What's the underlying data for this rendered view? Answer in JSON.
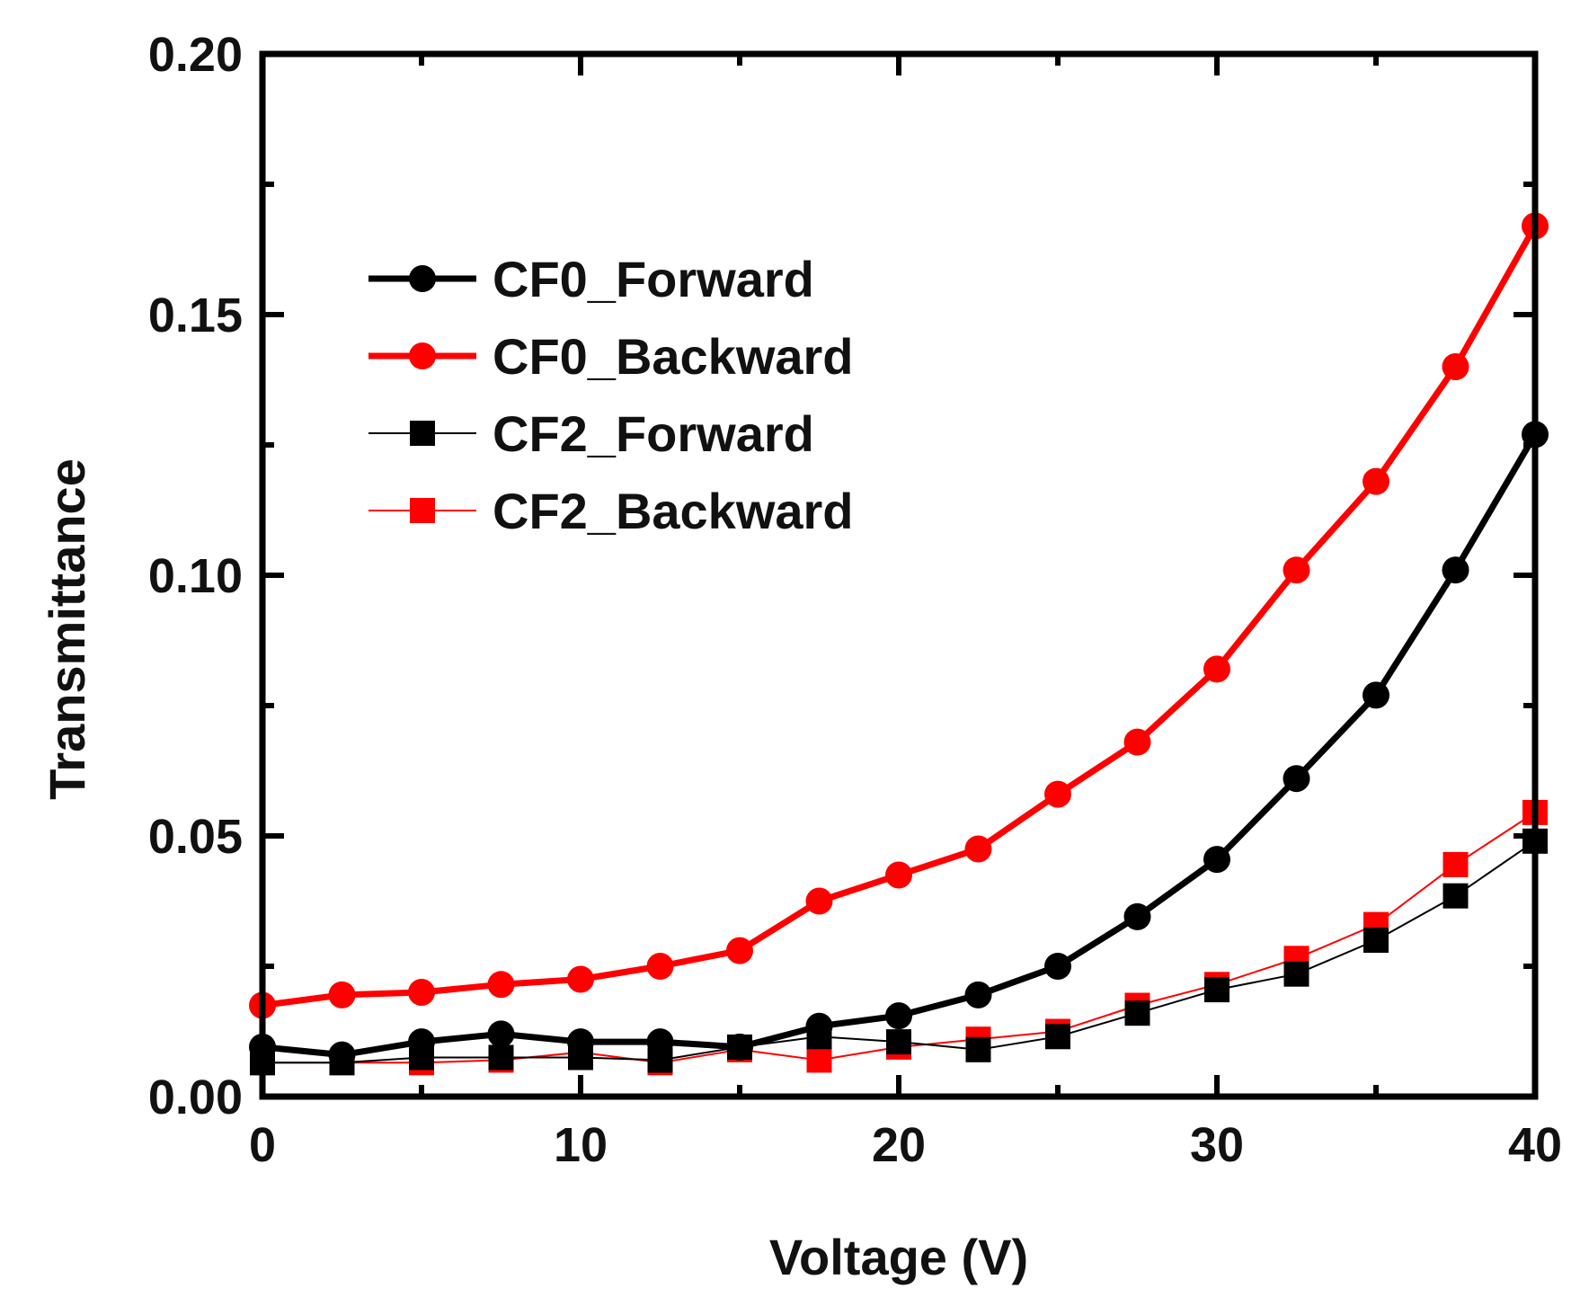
{
  "chart_data": {
    "type": "line",
    "title": "",
    "xlabel": "Voltage (V)",
    "ylabel": "Transmittance",
    "xlim": [
      0,
      40
    ],
    "ylim": [
      0,
      0.2
    ],
    "x_ticks": [
      0,
      10,
      20,
      30,
      40
    ],
    "x_tick_labels": [
      "0",
      "10",
      "20",
      "30",
      "40"
    ],
    "y_ticks": [
      0,
      0.05,
      0.1,
      0.15,
      0.2
    ],
    "y_tick_labels": [
      "0.00",
      "0.05",
      "0.10",
      "0.15",
      "0.20"
    ],
    "grid": false,
    "legend_position": "upper-left",
    "x": [
      0,
      2.5,
      5,
      7.5,
      10,
      12.5,
      15,
      17.5,
      20,
      22.5,
      25,
      27.5,
      30,
      32.5,
      35,
      37.5,
      40
    ],
    "series": [
      {
        "name": "CF0_Forward",
        "color": "#000000",
        "marker": "circle",
        "line": "thick",
        "values": [
          0.0095,
          0.008,
          0.0105,
          0.012,
          0.0105,
          0.0105,
          0.0095,
          0.0135,
          0.0155,
          0.0195,
          0.025,
          0.0345,
          0.0455,
          0.061,
          0.077,
          0.101,
          0.127
        ]
      },
      {
        "name": "CF0_Backward",
        "color": "#ff0000",
        "marker": "circle",
        "line": "thick",
        "values": [
          0.0175,
          0.0195,
          0.02,
          0.0215,
          0.0225,
          0.025,
          0.028,
          0.0375,
          0.0425,
          0.0475,
          0.058,
          0.068,
          0.082,
          0.101,
          0.118,
          0.14,
          0.167
        ]
      },
      {
        "name": "CF2_Forward",
        "color": "#000000",
        "marker": "square",
        "line": "thin",
        "values": [
          0.0065,
          0.0065,
          0.0075,
          0.0075,
          0.0075,
          0.007,
          0.0095,
          0.0115,
          0.0105,
          0.009,
          0.0115,
          0.016,
          0.0205,
          0.0235,
          0.03,
          0.0385,
          0.049
        ]
      },
      {
        "name": "CF2_Backward",
        "color": "#ff0000",
        "marker": "square",
        "line": "thin",
        "values": [
          0.0065,
          0.0065,
          0.0065,
          0.007,
          0.0085,
          0.0065,
          0.009,
          0.007,
          0.0095,
          0.011,
          0.0125,
          0.0175,
          0.0215,
          0.0265,
          0.033,
          0.0445,
          0.0545
        ]
      }
    ]
  }
}
